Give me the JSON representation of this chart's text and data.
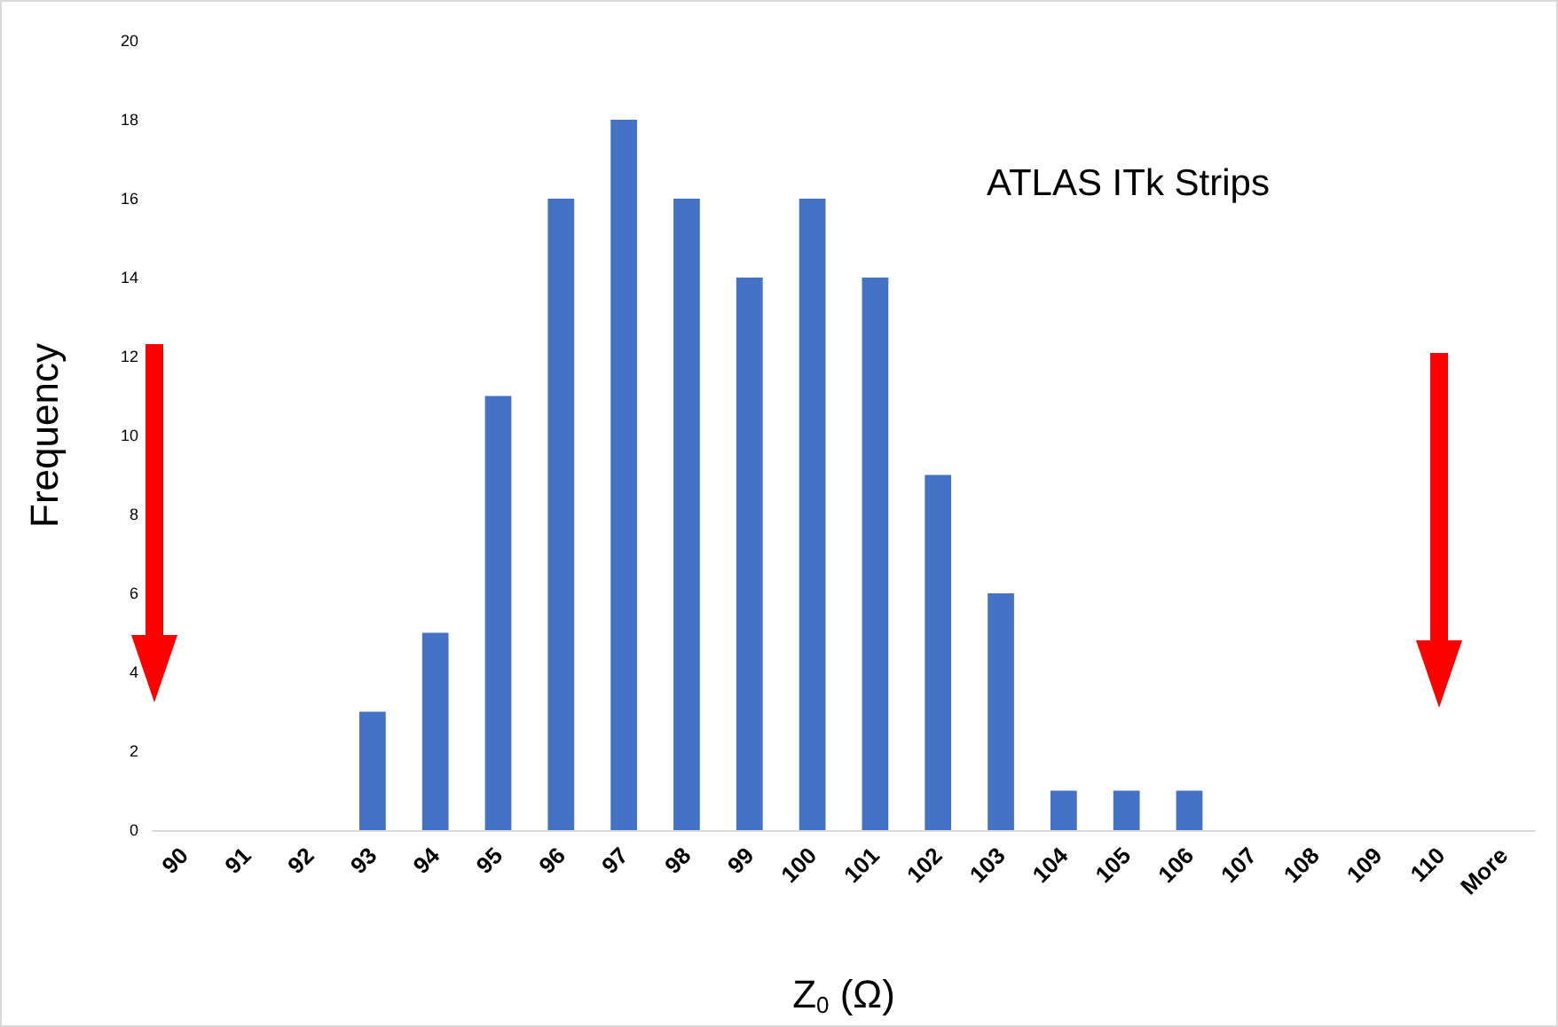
{
  "chart_data": {
    "type": "bar",
    "xlabel": "Z$_{0}$ (Ω)",
    "ylabel": "Frequency",
    "categories": [
      "90",
      "91",
      "92",
      "93",
      "94",
      "95",
      "96",
      "97",
      "98",
      "99",
      "100",
      "101",
      "102",
      "103",
      "104",
      "105",
      "106",
      "107",
      "108",
      "109",
      "110",
      "More"
    ],
    "values": [
      0,
      0,
      0,
      3,
      5,
      11,
      16,
      18,
      16,
      14,
      16,
      14,
      9,
      6,
      1,
      1,
      1,
      0,
      0,
      0,
      0,
      0
    ],
    "color": "#4472c4",
    "ylim": [
      0,
      20
    ],
    "yticks": [
      0,
      2,
      4,
      6,
      8,
      10,
      12,
      14,
      16,
      18,
      20
    ],
    "annotations": [
      "ATLAS ITk Strips"
    ]
  }
}
